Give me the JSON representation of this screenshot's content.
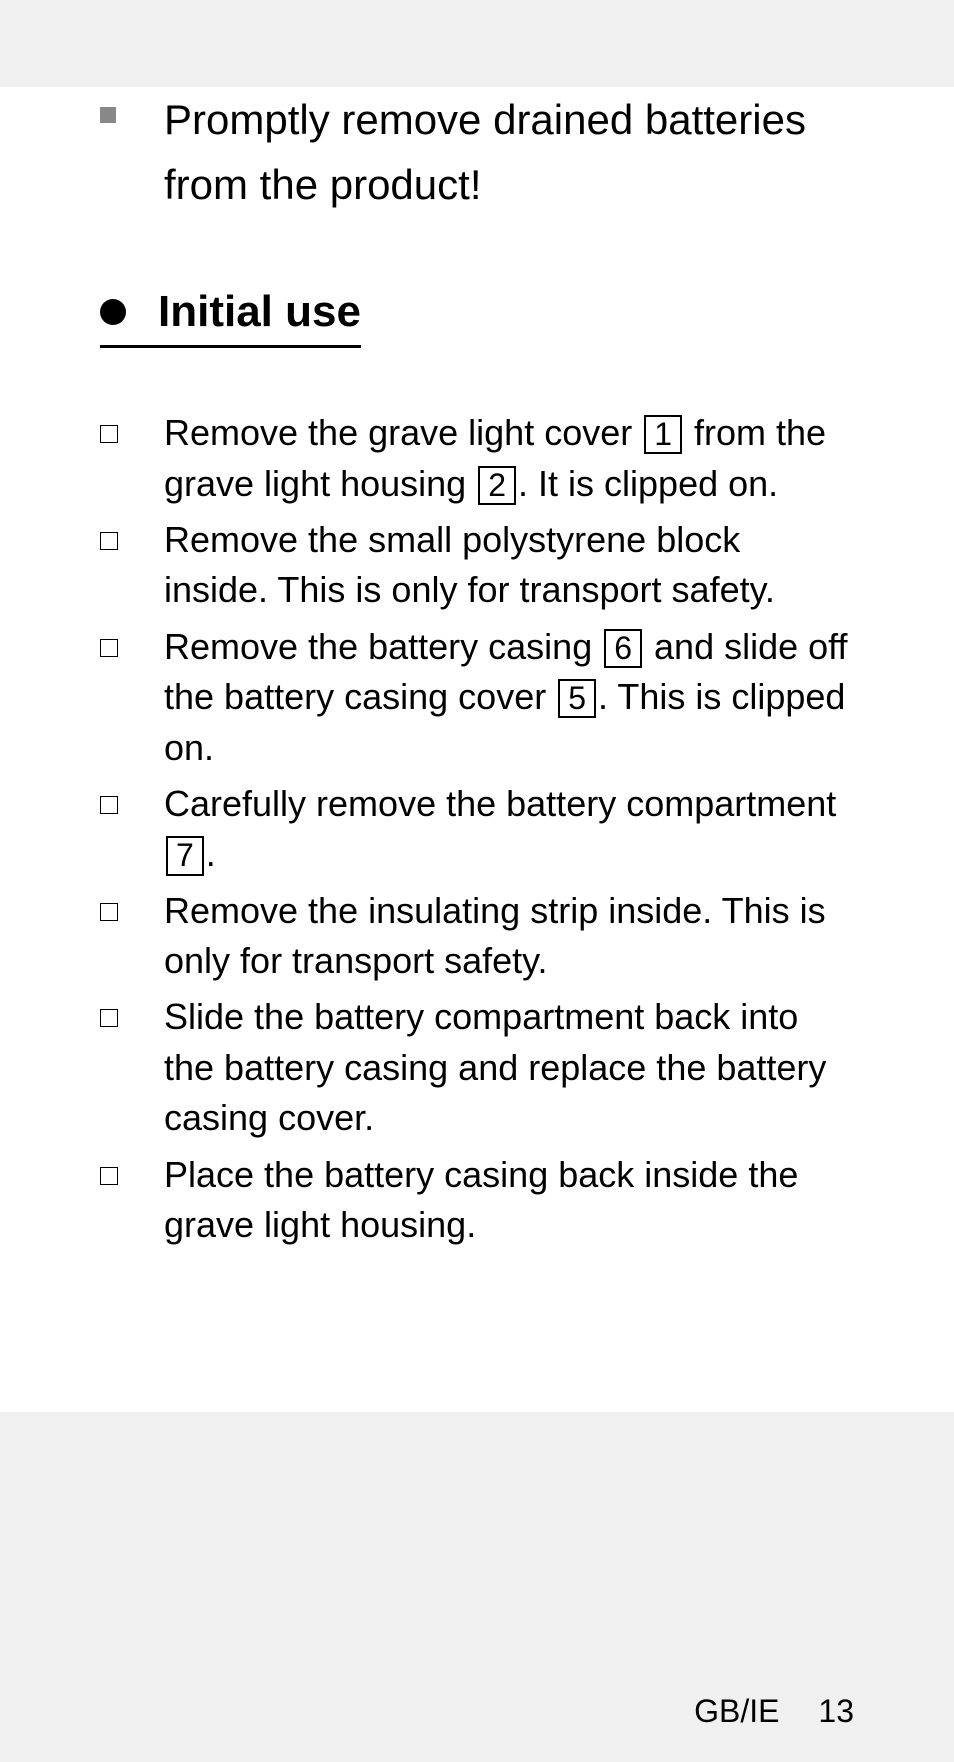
{
  "colors": {
    "page_bg": "#ffffff",
    "body_bg": "#f0f0f0",
    "text": "#000000",
    "square_bullet": "#888888"
  },
  "top_item": {
    "text": "Promptly remove drained batteries from the product!"
  },
  "heading": {
    "text": "Initial use"
  },
  "steps": [
    {
      "parts": [
        {
          "t": "text",
          "v": "Remove the grave light cover "
        },
        {
          "t": "ref",
          "v": "1"
        },
        {
          "t": "text",
          "v": " from the grave light housing "
        },
        {
          "t": "ref",
          "v": "2"
        },
        {
          "t": "text",
          "v": ". It is clipped on."
        }
      ]
    },
    {
      "parts": [
        {
          "t": "text",
          "v": "Remove the small polystyrene block inside. This is only for transport safety."
        }
      ]
    },
    {
      "parts": [
        {
          "t": "text",
          "v": "Remove the battery casing "
        },
        {
          "t": "ref",
          "v": "6"
        },
        {
          "t": "text",
          "v": " and slide off the battery casing cover "
        },
        {
          "t": "ref",
          "v": "5"
        },
        {
          "t": "text",
          "v": ". This is clipped on."
        }
      ]
    },
    {
      "parts": [
        {
          "t": "text",
          "v": "Carefully remove the battery com­partment "
        },
        {
          "t": "ref",
          "v": "7"
        },
        {
          "t": "text",
          "v": "."
        }
      ]
    },
    {
      "parts": [
        {
          "t": "text",
          "v": "Remove the insulating strip inside. This is only for transport safety."
        }
      ]
    },
    {
      "parts": [
        {
          "t": "text",
          "v": "Slide the battery compartment back into the battery casing and replace the battery casing cover."
        }
      ]
    },
    {
      "parts": [
        {
          "t": "text",
          "v": "Place the battery casing back inside the grave light housing."
        }
      ]
    }
  ],
  "footer": {
    "region": "GB/IE",
    "page_number": "13"
  }
}
